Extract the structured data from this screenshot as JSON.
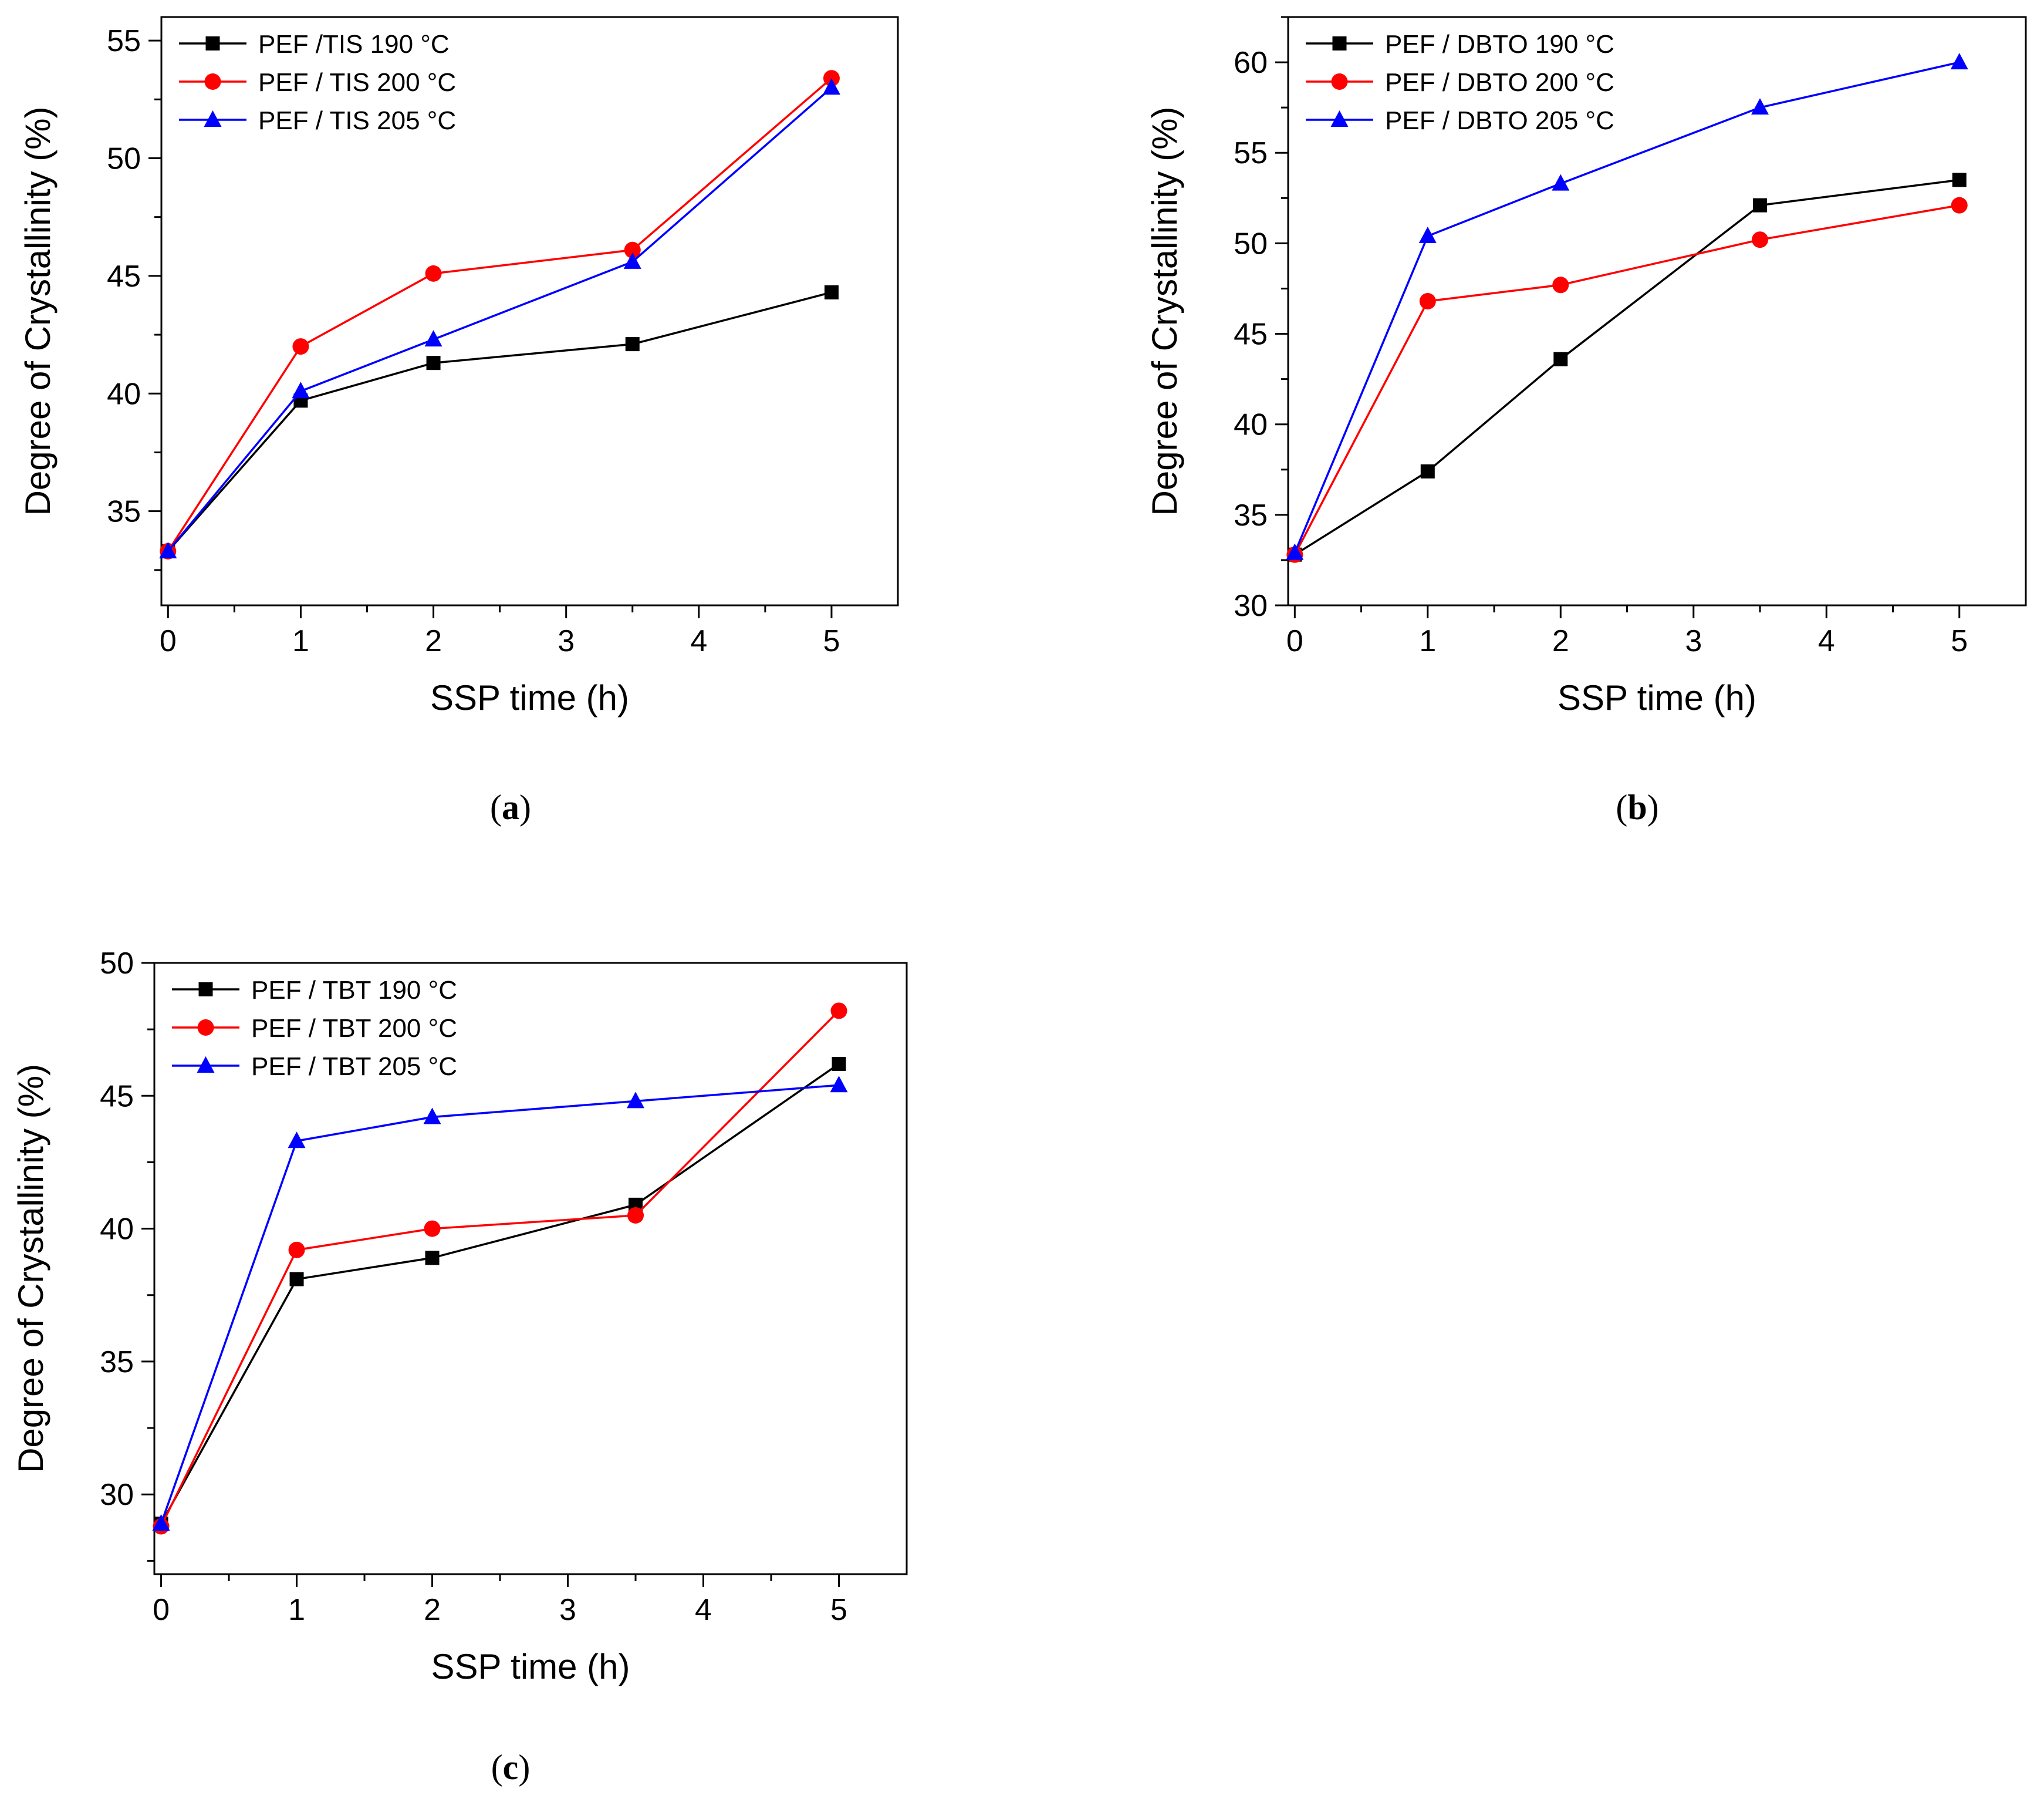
{
  "chart_data": [
    {
      "type": "line",
      "caption_letter": "a",
      "xlabel": "SSP time (h)",
      "ylabel": "Degree of Crystallinity (%)",
      "xlim": [
        -0.05,
        5.5
      ],
      "ylim": [
        31,
        56
      ],
      "xticks": [
        0,
        1,
        2,
        3,
        4,
        5
      ],
      "yticks": [
        35,
        40,
        45,
        50,
        55
      ],
      "legend_position": "top-left",
      "series": [
        {
          "name": "PEF /TIS 190 °C",
          "color": "#000000",
          "marker": "square",
          "x": [
            0,
            1,
            2,
            3.5,
            5
          ],
          "values": [
            33.3,
            39.7,
            41.3,
            42.1,
            44.3
          ]
        },
        {
          "name": "PEF / TIS 200 °C",
          "color": "#ff0000",
          "marker": "circle",
          "x": [
            0,
            1,
            2,
            3.5,
            5
          ],
          "values": [
            33.3,
            42.0,
            45.1,
            46.1,
            53.4
          ]
        },
        {
          "name": "PEF / TIS 205 °C",
          "color": "#0000ff",
          "marker": "triangle",
          "x": [
            0,
            1,
            2,
            3.5,
            5
          ],
          "values": [
            33.3,
            40.1,
            42.3,
            45.6,
            53.0
          ]
        }
      ]
    },
    {
      "type": "line",
      "caption_letter": "b",
      "xlabel": "SSP time (h)",
      "ylabel": "Degree of Crystallinity (%)",
      "xlim": [
        -0.05,
        5.5
      ],
      "ylim": [
        30,
        62.5
      ],
      "xticks": [
        0,
        1,
        2,
        3,
        4,
        5
      ],
      "yticks": [
        30,
        35,
        40,
        45,
        50,
        55,
        60
      ],
      "legend_position": "top-left",
      "series": [
        {
          "name": "PEF / DBTO 190 °C",
          "color": "#000000",
          "marker": "square",
          "x": [
            0,
            1,
            2,
            3.5,
            5
          ],
          "values": [
            32.8,
            37.4,
            43.6,
            52.1,
            53.5
          ]
        },
        {
          "name": "PEF / DBTO 200 °C",
          "color": "#ff0000",
          "marker": "circle",
          "x": [
            0,
            1,
            2,
            3.5,
            5
          ],
          "values": [
            32.8,
            46.8,
            47.7,
            50.2,
            52.1
          ]
        },
        {
          "name": "PEF / DBTO 205 °C",
          "color": "#0000ff",
          "marker": "triangle",
          "x": [
            0,
            1,
            2,
            3.5,
            5
          ],
          "values": [
            32.9,
            50.4,
            53.3,
            57.5,
            60.0
          ]
        }
      ]
    },
    {
      "type": "line",
      "caption_letter": "c",
      "xlabel": "SSP time (h)",
      "ylabel": "Degree of Crystallinity (%)",
      "xlim": [
        -0.05,
        5.5
      ],
      "ylim": [
        27,
        50
      ],
      "xticks": [
        0,
        1,
        2,
        3,
        4,
        5
      ],
      "yticks": [
        30,
        35,
        40,
        45,
        50
      ],
      "legend_position": "top-left",
      "series": [
        {
          "name": "PEF / TBT 190 °C",
          "color": "#000000",
          "marker": "square",
          "x": [
            0,
            1,
            2,
            3.5,
            5
          ],
          "values": [
            28.9,
            38.1,
            38.9,
            40.9,
            46.2
          ]
        },
        {
          "name": "PEF / TBT 200 °C",
          "color": "#ff0000",
          "marker": "circle",
          "x": [
            0,
            1,
            2,
            3.5,
            5
          ],
          "values": [
            28.8,
            39.2,
            40.0,
            40.5,
            48.2
          ]
        },
        {
          "name": "PEF / TBT 205 °C",
          "color": "#0000ff",
          "marker": "triangle",
          "x": [
            0,
            1,
            2,
            3.5,
            5
          ],
          "values": [
            28.9,
            43.3,
            44.2,
            44.8,
            45.4
          ]
        }
      ]
    }
  ]
}
